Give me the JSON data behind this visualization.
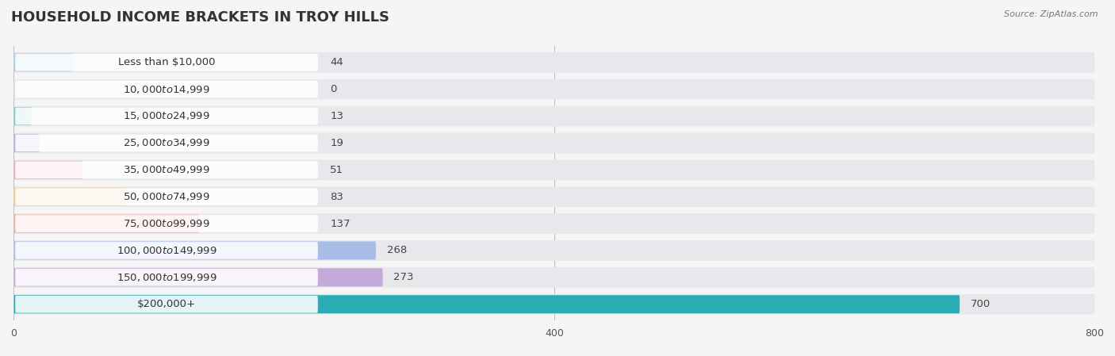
{
  "title": "HOUSEHOLD INCOME BRACKETS IN TROY HILLS",
  "source": "Source: ZipAtlas.com",
  "categories": [
    "Less than $10,000",
    "$10,000 to $14,999",
    "$15,000 to $24,999",
    "$25,000 to $34,999",
    "$35,000 to $49,999",
    "$50,000 to $74,999",
    "$75,000 to $99,999",
    "$100,000 to $149,999",
    "$150,000 to $199,999",
    "$200,000+"
  ],
  "values": [
    44,
    0,
    13,
    19,
    51,
    83,
    137,
    268,
    273,
    700
  ],
  "bar_colors": [
    "#a8d0e6",
    "#d4afd4",
    "#80cdc8",
    "#b4b0e0",
    "#f4a8be",
    "#f5cc90",
    "#f0aaA0",
    "#a8bce8",
    "#c4aad8",
    "#2aacb4"
  ],
  "bg_color": "#f5f5f5",
  "row_bg_color": "#e8e8ec",
  "xlim_max": 800,
  "xticks": [
    0,
    400,
    800
  ],
  "title_fontsize": 13,
  "label_fontsize": 9.5,
  "value_fontsize": 9.5,
  "source_fontsize": 8
}
